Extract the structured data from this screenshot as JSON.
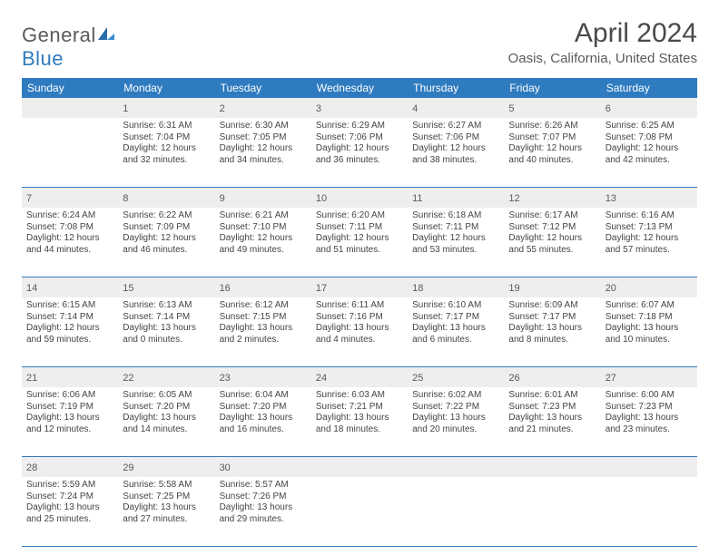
{
  "logo": {
    "general": "General",
    "blue": "Blue"
  },
  "title": "April 2024",
  "location": "Oasis, California, United States",
  "colors": {
    "header_bg": "#2f7bbf",
    "header_text": "#ffffff",
    "rule": "#2f7bbf",
    "num_band": "#eeeeee",
    "text": "#444444"
  },
  "dow": [
    "Sunday",
    "Monday",
    "Tuesday",
    "Wednesday",
    "Thursday",
    "Friday",
    "Saturday"
  ],
  "weeks": [
    [
      {
        "n": "",
        "lines": []
      },
      {
        "n": "1",
        "lines": [
          "Sunrise: 6:31 AM",
          "Sunset: 7:04 PM",
          "Daylight: 12 hours",
          "and 32 minutes."
        ]
      },
      {
        "n": "2",
        "lines": [
          "Sunrise: 6:30 AM",
          "Sunset: 7:05 PM",
          "Daylight: 12 hours",
          "and 34 minutes."
        ]
      },
      {
        "n": "3",
        "lines": [
          "Sunrise: 6:29 AM",
          "Sunset: 7:06 PM",
          "Daylight: 12 hours",
          "and 36 minutes."
        ]
      },
      {
        "n": "4",
        "lines": [
          "Sunrise: 6:27 AM",
          "Sunset: 7:06 PM",
          "Daylight: 12 hours",
          "and 38 minutes."
        ]
      },
      {
        "n": "5",
        "lines": [
          "Sunrise: 6:26 AM",
          "Sunset: 7:07 PM",
          "Daylight: 12 hours",
          "and 40 minutes."
        ]
      },
      {
        "n": "6",
        "lines": [
          "Sunrise: 6:25 AM",
          "Sunset: 7:08 PM",
          "Daylight: 12 hours",
          "and 42 minutes."
        ]
      }
    ],
    [
      {
        "n": "7",
        "lines": [
          "Sunrise: 6:24 AM",
          "Sunset: 7:08 PM",
          "Daylight: 12 hours",
          "and 44 minutes."
        ]
      },
      {
        "n": "8",
        "lines": [
          "Sunrise: 6:22 AM",
          "Sunset: 7:09 PM",
          "Daylight: 12 hours",
          "and 46 minutes."
        ]
      },
      {
        "n": "9",
        "lines": [
          "Sunrise: 6:21 AM",
          "Sunset: 7:10 PM",
          "Daylight: 12 hours",
          "and 49 minutes."
        ]
      },
      {
        "n": "10",
        "lines": [
          "Sunrise: 6:20 AM",
          "Sunset: 7:11 PM",
          "Daylight: 12 hours",
          "and 51 minutes."
        ]
      },
      {
        "n": "11",
        "lines": [
          "Sunrise: 6:18 AM",
          "Sunset: 7:11 PM",
          "Daylight: 12 hours",
          "and 53 minutes."
        ]
      },
      {
        "n": "12",
        "lines": [
          "Sunrise: 6:17 AM",
          "Sunset: 7:12 PM",
          "Daylight: 12 hours",
          "and 55 minutes."
        ]
      },
      {
        "n": "13",
        "lines": [
          "Sunrise: 6:16 AM",
          "Sunset: 7:13 PM",
          "Daylight: 12 hours",
          "and 57 minutes."
        ]
      }
    ],
    [
      {
        "n": "14",
        "lines": [
          "Sunrise: 6:15 AM",
          "Sunset: 7:14 PM",
          "Daylight: 12 hours",
          "and 59 minutes."
        ]
      },
      {
        "n": "15",
        "lines": [
          "Sunrise: 6:13 AM",
          "Sunset: 7:14 PM",
          "Daylight: 13 hours",
          "and 0 minutes."
        ]
      },
      {
        "n": "16",
        "lines": [
          "Sunrise: 6:12 AM",
          "Sunset: 7:15 PM",
          "Daylight: 13 hours",
          "and 2 minutes."
        ]
      },
      {
        "n": "17",
        "lines": [
          "Sunrise: 6:11 AM",
          "Sunset: 7:16 PM",
          "Daylight: 13 hours",
          "and 4 minutes."
        ]
      },
      {
        "n": "18",
        "lines": [
          "Sunrise: 6:10 AM",
          "Sunset: 7:17 PM",
          "Daylight: 13 hours",
          "and 6 minutes."
        ]
      },
      {
        "n": "19",
        "lines": [
          "Sunrise: 6:09 AM",
          "Sunset: 7:17 PM",
          "Daylight: 13 hours",
          "and 8 minutes."
        ]
      },
      {
        "n": "20",
        "lines": [
          "Sunrise: 6:07 AM",
          "Sunset: 7:18 PM",
          "Daylight: 13 hours",
          "and 10 minutes."
        ]
      }
    ],
    [
      {
        "n": "21",
        "lines": [
          "Sunrise: 6:06 AM",
          "Sunset: 7:19 PM",
          "Daylight: 13 hours",
          "and 12 minutes."
        ]
      },
      {
        "n": "22",
        "lines": [
          "Sunrise: 6:05 AM",
          "Sunset: 7:20 PM",
          "Daylight: 13 hours",
          "and 14 minutes."
        ]
      },
      {
        "n": "23",
        "lines": [
          "Sunrise: 6:04 AM",
          "Sunset: 7:20 PM",
          "Daylight: 13 hours",
          "and 16 minutes."
        ]
      },
      {
        "n": "24",
        "lines": [
          "Sunrise: 6:03 AM",
          "Sunset: 7:21 PM",
          "Daylight: 13 hours",
          "and 18 minutes."
        ]
      },
      {
        "n": "25",
        "lines": [
          "Sunrise: 6:02 AM",
          "Sunset: 7:22 PM",
          "Daylight: 13 hours",
          "and 20 minutes."
        ]
      },
      {
        "n": "26",
        "lines": [
          "Sunrise: 6:01 AM",
          "Sunset: 7:23 PM",
          "Daylight: 13 hours",
          "and 21 minutes."
        ]
      },
      {
        "n": "27",
        "lines": [
          "Sunrise: 6:00 AM",
          "Sunset: 7:23 PM",
          "Daylight: 13 hours",
          "and 23 minutes."
        ]
      }
    ],
    [
      {
        "n": "28",
        "lines": [
          "Sunrise: 5:59 AM",
          "Sunset: 7:24 PM",
          "Daylight: 13 hours",
          "and 25 minutes."
        ]
      },
      {
        "n": "29",
        "lines": [
          "Sunrise: 5:58 AM",
          "Sunset: 7:25 PM",
          "Daylight: 13 hours",
          "and 27 minutes."
        ]
      },
      {
        "n": "30",
        "lines": [
          "Sunrise: 5:57 AM",
          "Sunset: 7:26 PM",
          "Daylight: 13 hours",
          "and 29 minutes."
        ]
      },
      {
        "n": "",
        "lines": []
      },
      {
        "n": "",
        "lines": []
      },
      {
        "n": "",
        "lines": []
      },
      {
        "n": "",
        "lines": []
      }
    ]
  ]
}
